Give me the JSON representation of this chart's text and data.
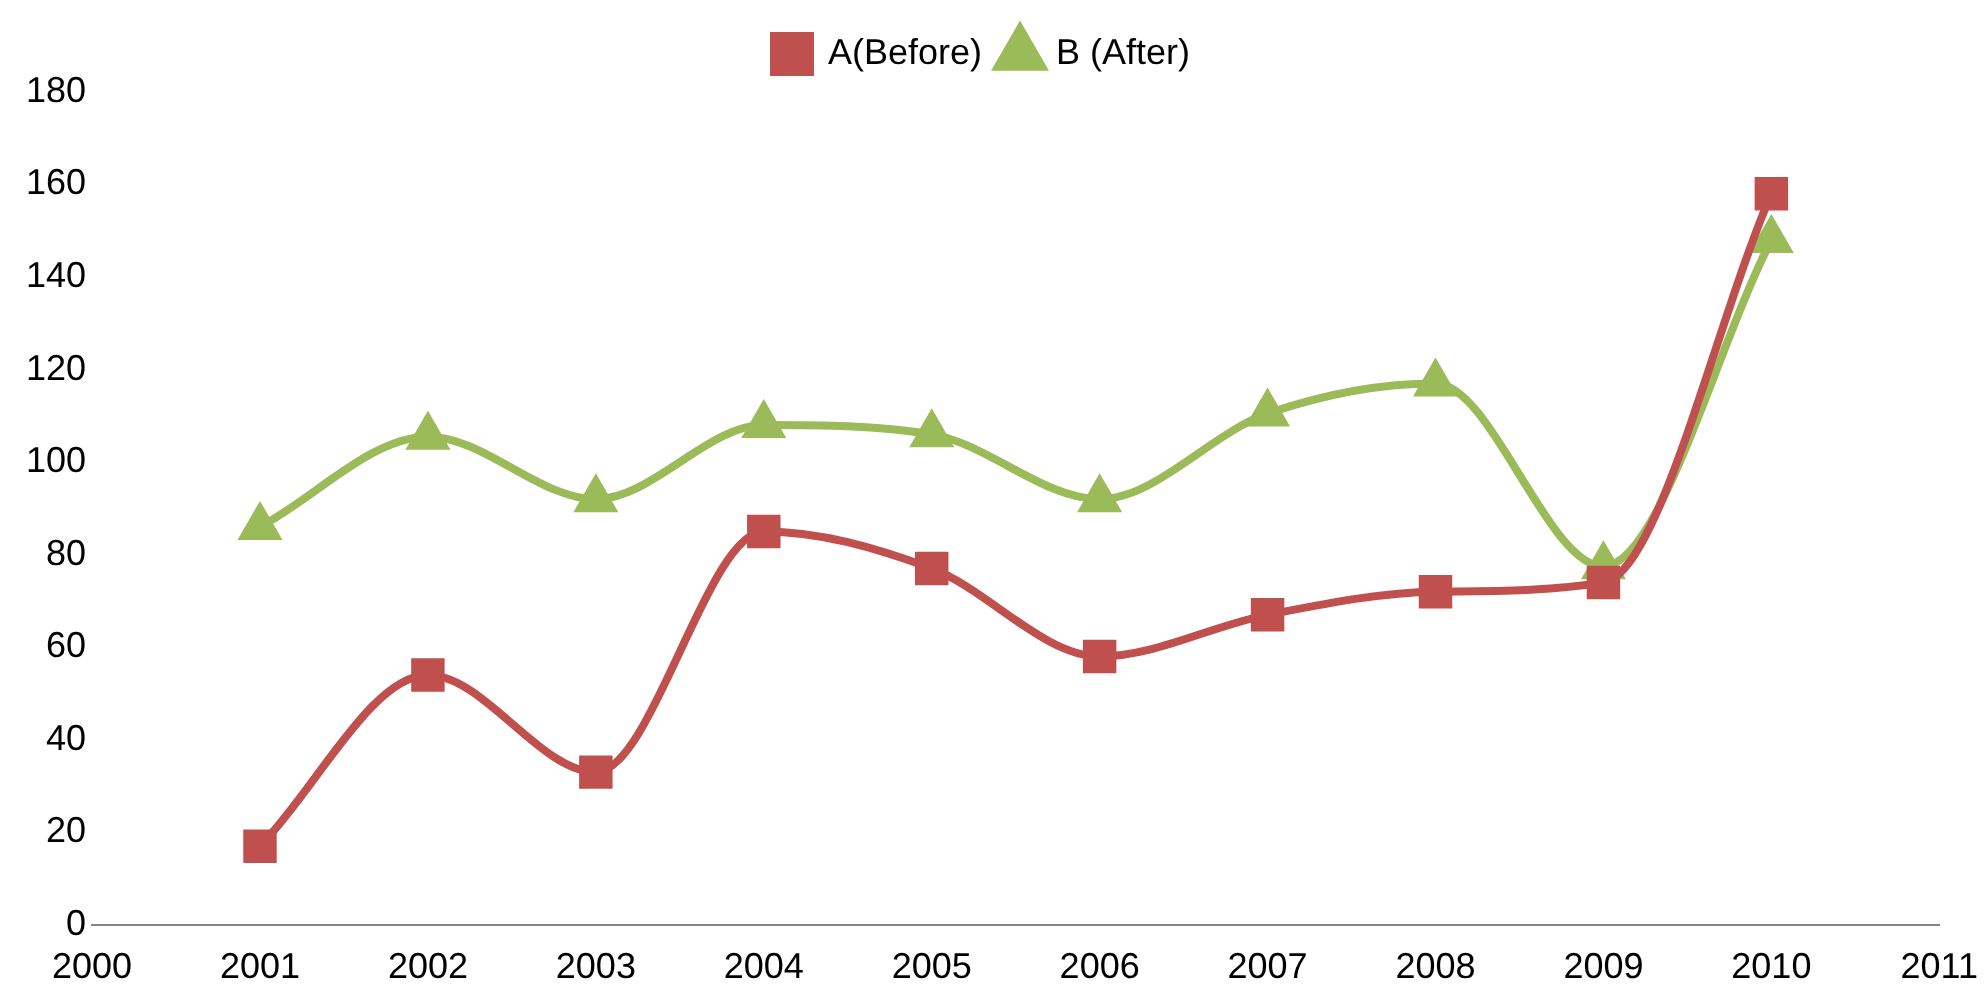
{
  "chart_data": {
    "type": "line",
    "x": [
      2001,
      2002,
      2003,
      2004,
      2005,
      2006,
      2007,
      2008,
      2009,
      2010
    ],
    "series": [
      {
        "name": "A(Before)",
        "color": "#c0504d",
        "marker": "square",
        "values": [
          17,
          54,
          33,
          85,
          77,
          58,
          67,
          72,
          74,
          158
        ]
      },
      {
        "name": "B (After)",
        "color": "#9bbb59",
        "marker": "triangle",
        "values": [
          86,
          105.5,
          92,
          108,
          106,
          92,
          110.5,
          117,
          77.5,
          148
        ]
      }
    ],
    "xlim": [
      2000,
      2011
    ],
    "xticks": [
      2000,
      2001,
      2002,
      2003,
      2004,
      2005,
      2006,
      2007,
      2008,
      2009,
      2010,
      2011
    ],
    "ylim": [
      0,
      180
    ],
    "yticks": [
      0,
      20,
      40,
      60,
      80,
      100,
      120,
      140,
      160,
      180
    ],
    "grid": false,
    "legend": "top",
    "line_style": "solid"
  }
}
